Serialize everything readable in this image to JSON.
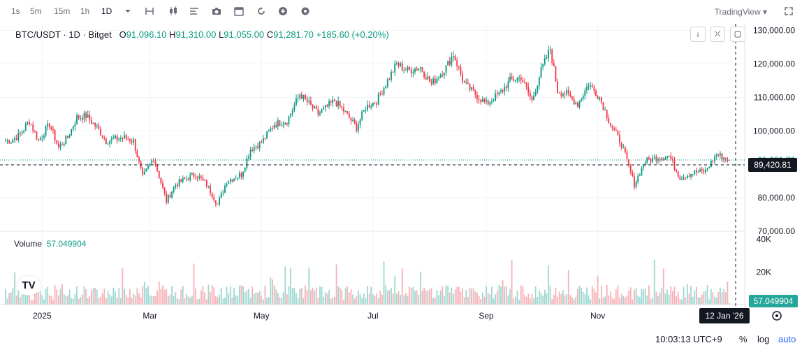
{
  "toolbar": {
    "timeframes": [
      "1s",
      "5m",
      "15m",
      "1h",
      "1D"
    ],
    "active_timeframe": "1D",
    "icons": [
      "chevron-down-icon",
      "bar-style-icon",
      "candles-icon",
      "indicators-icon",
      "camera-icon",
      "calendar-icon",
      "replay-icon",
      "plus-icon",
      "settings-icon"
    ],
    "brand": "TradingView ▾",
    "fullscreen_icon": "expand-icon"
  },
  "legend": {
    "symbol": "BTC/USDT · 1D · Bitget",
    "o_label": "O",
    "o_value": "91,096.10",
    "h_label": "H",
    "h_value": "91,310.00",
    "l_label": "L",
    "l_value": "91,055.00",
    "c_label": "C",
    "c_value": "91,281.70",
    "change": "+185.60 (+0.20%)"
  },
  "volume_legend": {
    "label": "Volume",
    "value": "57.049904"
  },
  "side_buttons": {
    "down": "↓",
    "collapse": "⤫",
    "maximize": "▢"
  },
  "price_axis": {
    "ticks": [
      "130,000.00",
      "120,000.00",
      "110,000.00",
      "100,000.00",
      "80,000.00",
      "70,000.00"
    ],
    "crosshair_price": "89,420.81",
    "last_price_partial": "91,281.70"
  },
  "volume_axis": {
    "ticks": [
      "40K",
      "20K"
    ],
    "last_volume": "57.049904"
  },
  "time_axis": {
    "labels": [
      "2025",
      "Mar",
      "May",
      "Jul",
      "Sep",
      "Nov"
    ],
    "crosshair_date": "12 Jan '26"
  },
  "bottom_bar": {
    "time": "10:03:13 UTC+9",
    "percent": "%",
    "log": "log",
    "auto": "auto"
  },
  "colors": {
    "up": "#089981",
    "down": "#f23645",
    "up_volume": "#9fd8d1",
    "down_volume": "#f7b2b7"
  },
  "chart_data": {
    "type": "candlestick",
    "title": "BTC/USDT · 1D · Bitget",
    "y_range": [
      70000,
      132000
    ],
    "volume_range": [
      0,
      42000
    ],
    "x_labels": [
      "2025",
      "Mar",
      "May",
      "Jul",
      "Sep",
      "Nov"
    ],
    "close_path": [
      [
        "2024-12-15",
        97000
      ],
      [
        "2024-12-20",
        99000
      ],
      [
        "2024-12-25",
        103000
      ],
      [
        "2024-12-30",
        97000
      ],
      [
        "2025-01-05",
        102000
      ],
      [
        "2025-01-10",
        95000
      ],
      [
        "2025-01-15",
        98000
      ],
      [
        "2025-01-20",
        104000
      ],
      [
        "2025-01-25",
        104500
      ],
      [
        "2025-01-31",
        101000
      ],
      [
        "2025-02-05",
        97000
      ],
      [
        "2025-02-10",
        97500
      ],
      [
        "2025-02-15",
        98000
      ],
      [
        "2025-02-20",
        97000
      ],
      [
        "2025-02-25",
        86000
      ],
      [
        "2025-03-03",
        92000
      ],
      [
        "2025-03-10",
        79000
      ],
      [
        "2025-03-15",
        84000
      ],
      [
        "2025-03-20",
        85500
      ],
      [
        "2025-03-26",
        87000
      ],
      [
        "2025-04-01",
        84000
      ],
      [
        "2025-04-07",
        78000
      ],
      [
        "2025-04-12",
        85000
      ],
      [
        "2025-04-20",
        87000
      ],
      [
        "2025-04-25",
        94500
      ],
      [
        "2025-05-01",
        96500
      ],
      [
        "2025-05-08",
        102000
      ],
      [
        "2025-05-15",
        103000
      ],
      [
        "2025-05-22",
        111000
      ],
      [
        "2025-05-27",
        108000
      ],
      [
        "2025-06-01",
        105000
      ],
      [
        "2025-06-10",
        109000
      ],
      [
        "2025-06-15",
        106000
      ],
      [
        "2025-06-22",
        101000
      ],
      [
        "2025-06-27",
        107000
      ],
      [
        "2025-07-03",
        109000
      ],
      [
        "2025-07-10",
        116000
      ],
      [
        "2025-07-14",
        120000
      ],
      [
        "2025-07-20",
        118000
      ],
      [
        "2025-07-27",
        119000
      ],
      [
        "2025-08-02",
        114000
      ],
      [
        "2025-08-10",
        119000
      ],
      [
        "2025-08-14",
        123000
      ],
      [
        "2025-08-20",
        114000
      ],
      [
        "2025-08-26",
        111000
      ],
      [
        "2025-09-01",
        108000
      ],
      [
        "2025-09-08",
        111000
      ],
      [
        "2025-09-14",
        115000
      ],
      [
        "2025-09-20",
        116000
      ],
      [
        "2025-09-26",
        109000
      ],
      [
        "2025-10-01",
        118000
      ],
      [
        "2025-10-06",
        124500
      ],
      [
        "2025-10-10",
        112000
      ],
      [
        "2025-10-15",
        111000
      ],
      [
        "2025-10-21",
        108000
      ],
      [
        "2025-10-27",
        114000
      ],
      [
        "2025-11-02",
        110000
      ],
      [
        "2025-11-08",
        102000
      ],
      [
        "2025-11-14",
        96000
      ],
      [
        "2025-11-21",
        84000
      ],
      [
        "2025-11-27",
        91000
      ],
      [
        "2025-12-03",
        92000
      ],
      [
        "2025-12-10",
        92500
      ],
      [
        "2025-12-16",
        86000
      ],
      [
        "2025-12-23",
        87500
      ],
      [
        "2025-12-30",
        88000
      ],
      [
        "2026-01-05",
        93000
      ],
      [
        "2026-01-12",
        91282
      ]
    ],
    "last": {
      "open": 91096.1,
      "high": 91310.0,
      "low": 91055.0,
      "close": 91281.7,
      "volume": 57.049904
    }
  }
}
